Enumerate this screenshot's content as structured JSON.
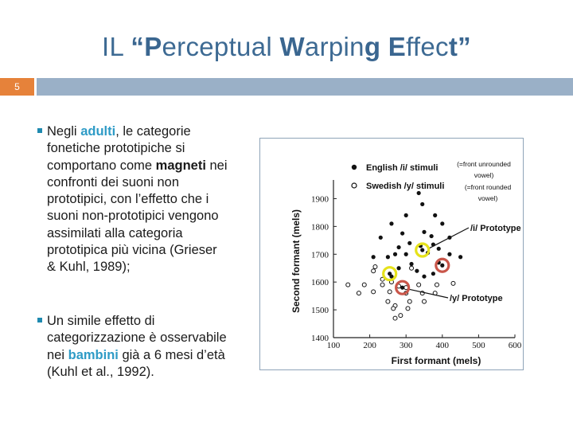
{
  "slide": {
    "title_parts": [
      {
        "text": "IL ",
        "bold": false
      },
      {
        "text": "“P",
        "bold": true
      },
      {
        "text": "erceptual ",
        "bold": false
      },
      {
        "text": "W",
        "bold": true
      },
      {
        "text": "arpin",
        "bold": false
      },
      {
        "text": "g",
        "bold": true
      },
      {
        "text": " ",
        "bold": false
      },
      {
        "text": "E",
        "bold": true
      },
      {
        "text": "ffec",
        "bold": false
      },
      {
        "text": "t”",
        "bold": true
      }
    ],
    "number": "5"
  },
  "body": {
    "p1": {
      "t1": "Negli ",
      "hl": "adulti",
      "t2": ", le categorie fonetiche prototipiche si comportano come ",
      "b": "magneti",
      "t3": " nei confronti dei suoni non prototipici, con l’effetto che i suoni non-prototipici vengono assimilati alla categoria prototipica più vicina (Grieser & Kuhl, 1989);"
    },
    "p2": {
      "t1": "Un simile effetto di categorizzazione è osservabile nei ",
      "hl": "bambini",
      "t2": " già a 6 mesi d’età (Kuhl et al., 1992)."
    }
  },
  "figure": {
    "legend_english": "English /i/ stimuli",
    "legend_swedish": "Swedish /y/ stimuli",
    "note_1a": "(=front unrounded",
    "note_1b": "vowel)",
    "note_2a": "(=front rounded",
    "note_2b": "vowel)",
    "label_i": "/i/ Prototype",
    "label_y": "/y/ Prototype",
    "colors": {
      "highlight_yellow": "#e6e21a",
      "highlight_red": "#c9564a"
    }
  },
  "chart_data": {
    "type": "scatter",
    "xlabel": "First formant (mels)",
    "ylabel": "Second formant (mels)",
    "xlim": [
      100,
      600
    ],
    "ylim": [
      1400,
      1950
    ],
    "x_ticks": [
      100,
      200,
      300,
      400,
      500,
      600
    ],
    "y_ticks": [
      1400,
      1500,
      1600,
      1700,
      1800,
      1900
    ],
    "series": [
      {
        "name": "English /i/ stimuli",
        "marker": "filled",
        "points": [
          [
            335,
            1920
          ],
          [
            345,
            1880
          ],
          [
            300,
            1840
          ],
          [
            380,
            1840
          ],
          [
            260,
            1810
          ],
          [
            400,
            1810
          ],
          [
            290,
            1775
          ],
          [
            350,
            1780
          ],
          [
            370,
            1765
          ],
          [
            230,
            1760
          ],
          [
            420,
            1760
          ],
          [
            310,
            1740
          ],
          [
            340,
            1730
          ],
          [
            375,
            1735
          ],
          [
            280,
            1725
          ],
          [
            390,
            1720
          ],
          [
            270,
            1700
          ],
          [
            420,
            1700
          ],
          [
            210,
            1690
          ],
          [
            250,
            1690
          ],
          [
            450,
            1690
          ],
          [
            300,
            1700
          ],
          [
            360,
            1705
          ],
          [
            315,
            1665
          ],
          [
            390,
            1670
          ],
          [
            280,
            1650
          ],
          [
            330,
            1640
          ],
          [
            375,
            1630
          ],
          [
            260,
            1620
          ],
          [
            350,
            1620
          ]
        ]
      },
      {
        "name": "Swedish /y/ stimuli",
        "marker": "open",
        "points": [
          [
            215,
            1655
          ],
          [
            315,
            1650
          ],
          [
            210,
            1640
          ],
          [
            235,
            1610
          ],
          [
            260,
            1600
          ],
          [
            300,
            1580
          ],
          [
            140,
            1590
          ],
          [
            185,
            1590
          ],
          [
            235,
            1590
          ],
          [
            280,
            1585
          ],
          [
            335,
            1590
          ],
          [
            385,
            1590
          ],
          [
            430,
            1595
          ],
          [
            170,
            1560
          ],
          [
            210,
            1565
          ],
          [
            255,
            1565
          ],
          [
            300,
            1560
          ],
          [
            345,
            1560
          ],
          [
            380,
            1560
          ],
          [
            250,
            1530
          ],
          [
            310,
            1530
          ],
          [
            350,
            1530
          ],
          [
            270,
            1515
          ],
          [
            305,
            1505
          ],
          [
            270,
            1470
          ],
          [
            285,
            1480
          ],
          [
            265,
            1505
          ]
        ]
      }
    ],
    "prototypes": [
      {
        "name": "/i/ Prototype",
        "x": 345,
        "y": 1715
      },
      {
        "name": "/y/ Prototype",
        "x": 290,
        "y": 1580
      }
    ],
    "highlighted_points": [
      {
        "x": 345,
        "y": 1715,
        "color": "yellow"
      },
      {
        "x": 255,
        "y": 1630,
        "color": "yellow"
      },
      {
        "x": 400,
        "y": 1660,
        "color": "red"
      },
      {
        "x": 290,
        "y": 1580,
        "color": "red"
      }
    ]
  }
}
